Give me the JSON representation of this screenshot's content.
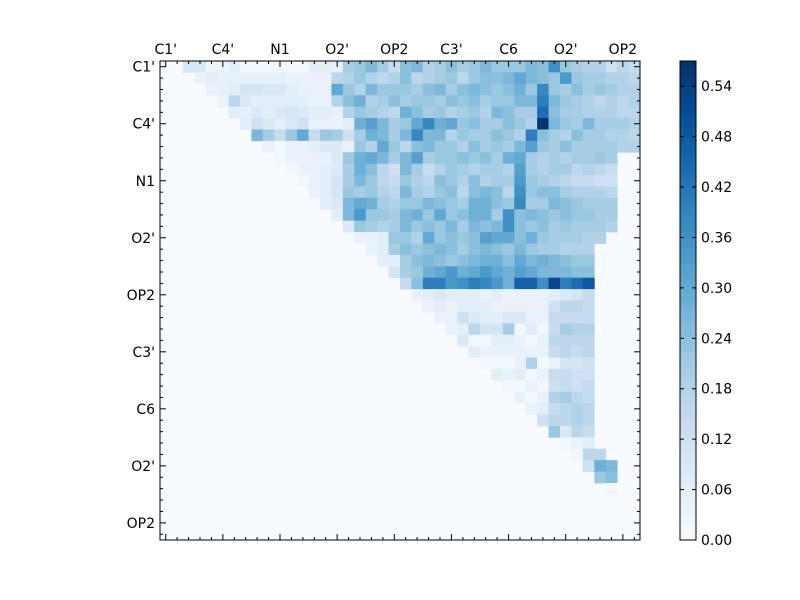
{
  "chart_data": {
    "type": "heatmap",
    "title": "",
    "xlabel": "",
    "ylabel": "",
    "matrix_size": 42,
    "x_tick_labels": [
      "C1'",
      "C4'",
      "N1",
      "O2'",
      "OP2",
      "C3'",
      "C6",
      "O2'",
      "OP2"
    ],
    "y_tick_labels": [
      "C1'",
      "C4'",
      "N1",
      "O2'",
      "OP2",
      "C3'",
      "C6",
      "O2'",
      "OP2"
    ],
    "label_index_step": 5,
    "minor_tick_step": 1,
    "colormap": "Blues",
    "colorbar": {
      "range": [
        0.0,
        0.57
      ],
      "ticks": [
        "0.00",
        "0.06",
        "0.12",
        "0.18",
        "0.24",
        "0.30",
        "0.36",
        "0.42",
        "0.48",
        "0.54"
      ]
    },
    "mask": "upper_triangle_only",
    "upper_triangle_values_by_row": [
      [
        0.09,
        0.09,
        0.03,
        0.03,
        0.06,
        0.02,
        0.02,
        0.02,
        0.02,
        0.02,
        0.02,
        0.06,
        0.06,
        0.04,
        0.2,
        0.22,
        0.26,
        0.2,
        0.14,
        0.24,
        0.26,
        0.18,
        0.2,
        0.24,
        0.2,
        0.22,
        0.26,
        0.22,
        0.22,
        0.22,
        0.26,
        0.24,
        0.36,
        0.22,
        0.2,
        0.18,
        0.18,
        0.12,
        0.16,
        0.14
      ],
      [
        0.04,
        0.06,
        0.05,
        0.05,
        0.05,
        0.05,
        0.05,
        0.05,
        0.04,
        0.04,
        0.04,
        0.04,
        0.16,
        0.18,
        0.22,
        0.18,
        0.16,
        0.18,
        0.24,
        0.16,
        0.18,
        0.2,
        0.22,
        0.16,
        0.22,
        0.24,
        0.24,
        0.26,
        0.3,
        0.26,
        0.24,
        0.22,
        0.34,
        0.22,
        0.2,
        0.2,
        0.18,
        0.18,
        0.16
      ],
      [
        0.04,
        0.05,
        0.06,
        0.1,
        0.1,
        0.08,
        0.08,
        0.06,
        0.04,
        0.04,
        0.04,
        0.3,
        0.22,
        0.18,
        0.26,
        0.22,
        0.22,
        0.22,
        0.2,
        0.24,
        0.26,
        0.2,
        0.24,
        0.26,
        0.24,
        0.22,
        0.24,
        0.28,
        0.22,
        0.38,
        0.22,
        0.2,
        0.24,
        0.2,
        0.22,
        0.2,
        0.18,
        0.18
      ],
      [
        0.04,
        0.16,
        0.08,
        0.06,
        0.06,
        0.06,
        0.06,
        0.06,
        0.04,
        0.04,
        0.18,
        0.24,
        0.28,
        0.18,
        0.2,
        0.24,
        0.2,
        0.22,
        0.22,
        0.2,
        0.24,
        0.22,
        0.24,
        0.2,
        0.22,
        0.22,
        0.26,
        0.26,
        0.4,
        0.26,
        0.22,
        0.2,
        0.18,
        0.16,
        0.18,
        0.16,
        0.18
      ],
      [
        0.06,
        0.05,
        0.08,
        0.06,
        0.08,
        0.1,
        0.08,
        0.06,
        0.06,
        0.04,
        0.18,
        0.22,
        0.2,
        0.18,
        0.16,
        0.28,
        0.24,
        0.2,
        0.22,
        0.18,
        0.2,
        0.22,
        0.18,
        0.26,
        0.24,
        0.2,
        0.2,
        0.44,
        0.24,
        0.2,
        0.2,
        0.18,
        0.18,
        0.18,
        0.16,
        0.16
      ],
      [
        0.06,
        0.12,
        0.08,
        0.06,
        0.08,
        0.12,
        0.04,
        0.04,
        0.04,
        0.06,
        0.28,
        0.32,
        0.26,
        0.2,
        0.22,
        0.3,
        0.38,
        0.28,
        0.3,
        0.22,
        0.24,
        0.2,
        0.2,
        0.24,
        0.22,
        0.18,
        0.56,
        0.26,
        0.22,
        0.2,
        0.26,
        0.2,
        0.2,
        0.2,
        0.18
      ],
      [
        0.26,
        0.2,
        0.14,
        0.22,
        0.3,
        0.14,
        0.22,
        0.2,
        0.12,
        0.2,
        0.28,
        0.26,
        0.2,
        0.26,
        0.38,
        0.26,
        0.26,
        0.18,
        0.22,
        0.2,
        0.2,
        0.24,
        0.22,
        0.18,
        0.4,
        0.24,
        0.2,
        0.18,
        0.24,
        0.2,
        0.2,
        0.18,
        0.18,
        0.16
      ],
      [
        0.04,
        0.02,
        0.04,
        0.04,
        0.06,
        0.08,
        0.08,
        0.04,
        0.22,
        0.18,
        0.3,
        0.22,
        0.16,
        0.24,
        0.26,
        0.22,
        0.22,
        0.18,
        0.24,
        0.2,
        0.22,
        0.2,
        0.26,
        0.32,
        0.22,
        0.2,
        0.24,
        0.2,
        0.2,
        0.2,
        0.2,
        0.18,
        0.18
      ],
      [
        0.02,
        0.04,
        0.04,
        0.04,
        0.04,
        0.08,
        0.22,
        0.28,
        0.3,
        0.26,
        0.2,
        0.26,
        0.32,
        0.2,
        0.22,
        0.22,
        0.24,
        0.22,
        0.24,
        0.2,
        0.28,
        0.3,
        0.2,
        0.18,
        0.2,
        0.18,
        0.2,
        0.2,
        0.22,
        0.2
      ],
      [
        0.02,
        0.04,
        0.04,
        0.06,
        0.08,
        0.2,
        0.28,
        0.24,
        0.16,
        0.12,
        0.26,
        0.2,
        0.14,
        0.18,
        0.22,
        0.2,
        0.18,
        0.2,
        0.2,
        0.18,
        0.32,
        0.2,
        0.18,
        0.2,
        0.2,
        0.16,
        0.18,
        0.16,
        0.14
      ],
      [
        0.02,
        0.04,
        0.06,
        0.1,
        0.2,
        0.26,
        0.22,
        0.16,
        0.14,
        0.22,
        0.18,
        0.16,
        0.24,
        0.22,
        0.18,
        0.24,
        0.18,
        0.2,
        0.2,
        0.34,
        0.22,
        0.2,
        0.18,
        0.16,
        0.14,
        0.14,
        0.12,
        0.12
      ],
      [
        0.04,
        0.06,
        0.1,
        0.22,
        0.2,
        0.22,
        0.18,
        0.16,
        0.26,
        0.2,
        0.18,
        0.22,
        0.24,
        0.16,
        0.24,
        0.26,
        0.24,
        0.16,
        0.36,
        0.22,
        0.24,
        0.24,
        0.2,
        0.18,
        0.18,
        0.18,
        0.16
      ],
      [
        0.06,
        0.08,
        0.26,
        0.3,
        0.28,
        0.2,
        0.18,
        0.22,
        0.22,
        0.26,
        0.24,
        0.22,
        0.2,
        0.28,
        0.28,
        0.24,
        0.22,
        0.38,
        0.2,
        0.2,
        0.26,
        0.24,
        0.22,
        0.2,
        0.2,
        0.2
      ],
      [
        0.06,
        0.26,
        0.34,
        0.22,
        0.22,
        0.2,
        0.26,
        0.28,
        0.22,
        0.3,
        0.22,
        0.24,
        0.28,
        0.28,
        0.2,
        0.36,
        0.24,
        0.26,
        0.24,
        0.22,
        0.24,
        0.22,
        0.22,
        0.2,
        0.2
      ],
      [
        0.08,
        0.22,
        0.2,
        0.18,
        0.2,
        0.26,
        0.22,
        0.24,
        0.22,
        0.26,
        0.2,
        0.26,
        0.24,
        0.26,
        0.36,
        0.24,
        0.22,
        0.24,
        0.2,
        0.22,
        0.2,
        0.2,
        0.2,
        0.18
      ],
      [
        0.04,
        0.04,
        0.06,
        0.22,
        0.22,
        0.18,
        0.3,
        0.22,
        0.24,
        0.22,
        0.24,
        0.32,
        0.3,
        0.3,
        0.24,
        0.28,
        0.22,
        0.2,
        0.2,
        0.2,
        0.18,
        0.18
      ],
      [
        0.04,
        0.06,
        0.2,
        0.24,
        0.22,
        0.24,
        0.26,
        0.24,
        0.2,
        0.24,
        0.26,
        0.24,
        0.22,
        0.26,
        0.22,
        0.2,
        0.2,
        0.18,
        0.18,
        0.18
      ],
      [
        0.06,
        0.06,
        0.2,
        0.24,
        0.26,
        0.24,
        0.22,
        0.24,
        0.26,
        0.28,
        0.28,
        0.24,
        0.3,
        0.26,
        0.28,
        0.26,
        0.24,
        0.22,
        0.22
      ],
      [
        0.1,
        0.2,
        0.22,
        0.28,
        0.3,
        0.34,
        0.28,
        0.3,
        0.34,
        0.3,
        0.28,
        0.32,
        0.3,
        0.26,
        0.26,
        0.26,
        0.24,
        0.24
      ],
      [
        0.14,
        0.24,
        0.4,
        0.4,
        0.34,
        0.36,
        0.4,
        0.38,
        0.34,
        0.28,
        0.46,
        0.46,
        0.36,
        0.52,
        0.4,
        0.44,
        0.48
      ],
      [
        0.04,
        0.06,
        0.08,
        0.06,
        0.06,
        0.06,
        0.04,
        0.06,
        0.04,
        0.04,
        0.04,
        0.04,
        0.06,
        0.08,
        0.1,
        0.14
      ],
      [
        0.04,
        0.06,
        0.04,
        0.06,
        0.06,
        0.06,
        0.04,
        0.04,
        0.04,
        0.04,
        0.04,
        0.12,
        0.16,
        0.16,
        0.14
      ],
      [
        0.04,
        0.04,
        0.12,
        0.08,
        0.06,
        0.06,
        0.08,
        0.08,
        0.04,
        0.04,
        0.14,
        0.14,
        0.14,
        0.14
      ],
      [
        0.04,
        0.06,
        0.16,
        0.1,
        0.1,
        0.2,
        0.02,
        0.06,
        0.02,
        0.14,
        0.2,
        0.18,
        0.18
      ],
      [
        0.08,
        0.02,
        0.02,
        0.06,
        0.06,
        0.04,
        0.02,
        0.04,
        0.16,
        0.16,
        0.16,
        0.16
      ],
      [
        0.06,
        0.04,
        0.04,
        0.04,
        0.04,
        0.04,
        0.04,
        0.14,
        0.16,
        0.14,
        0.16
      ],
      [
        0.02,
        0.02,
        0.02,
        0.04,
        0.18,
        0.02,
        0.04,
        0.1,
        0.1,
        0.12
      ],
      [
        0.06,
        0.04,
        0.06,
        0.02,
        0.04,
        0.14,
        0.14,
        0.12,
        0.12
      ],
      [
        0.02,
        0.02,
        0.04,
        0.02,
        0.12,
        0.14,
        0.12,
        0.14
      ],
      [
        0.04,
        0.02,
        0.04,
        0.18,
        0.2,
        0.16,
        0.14
      ],
      [
        0.04,
        0.06,
        0.14,
        0.16,
        0.18,
        0.16
      ],
      [
        0.12,
        0.16,
        0.16,
        0.18,
        0.16
      ],
      [
        0.22,
        0.08,
        0.16,
        0.14
      ],
      [
        0.02,
        0.04,
        0.06
      ],
      [
        0.02,
        0.16,
        0.16
      ],
      [
        0.12,
        0.28,
        0.26
      ],
      [
        0.22,
        0.24
      ],
      [
        0.02
      ],
      [],
      [],
      [],
      []
    ]
  }
}
